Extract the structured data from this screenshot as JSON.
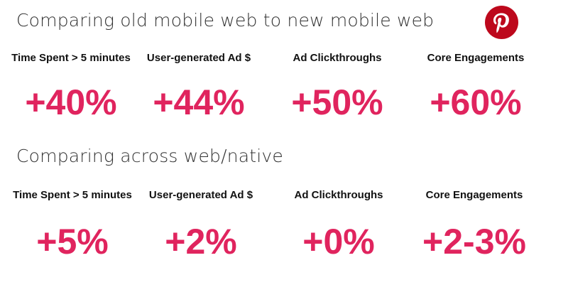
{
  "sections": [
    {
      "title": "Comparing old mobile web to new mobile web",
      "metrics": [
        {
          "label": "Time Spent > 5 minutes",
          "value": "+40%"
        },
        {
          "label": "User-generated Ad $",
          "value": "+44%"
        },
        {
          "label": "Ad Clickthroughs",
          "value": "+50%"
        },
        {
          "label": "Core Engagements",
          "value": "+60%"
        }
      ]
    },
    {
      "title": "Comparing across web/native",
      "metrics": [
        {
          "label": "Time Spent > 5 minutes",
          "value": "+5%"
        },
        {
          "label": "User-generated Ad $",
          "value": "+2%"
        },
        {
          "label": "Ad Clickthroughs",
          "value": "+0%"
        },
        {
          "label": "Core Engagements",
          "value": "+2-3%"
        }
      ]
    }
  ],
  "logo": {
    "icon": "pinterest-logo-icon"
  },
  "colors": {
    "accent": "#e0245e",
    "brand": "#bd081c",
    "text": "#111111"
  }
}
